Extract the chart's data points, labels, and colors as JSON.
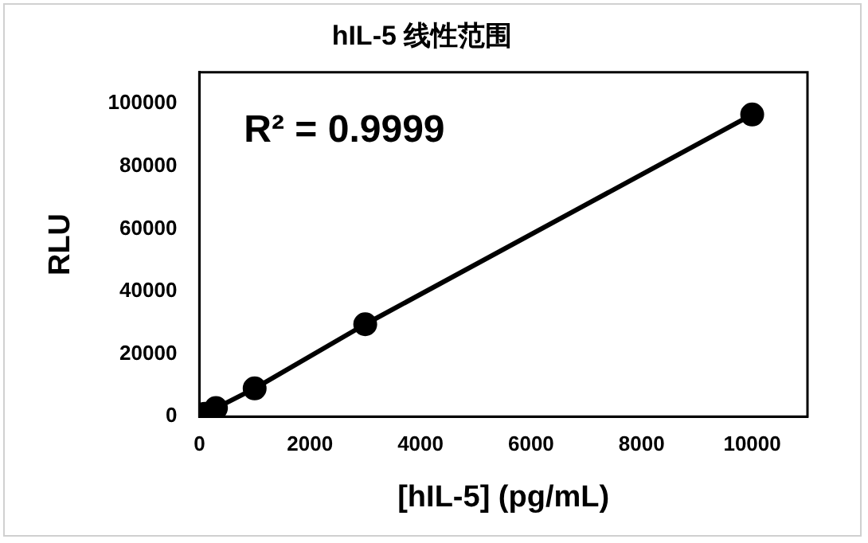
{
  "chart_data": {
    "type": "line",
    "title": "hIL-5 线性范围",
    "xlabel": "[hIL-5] (pg/mL)",
    "ylabel": "RLU",
    "x": [
      0,
      30,
      100,
      300,
      1000,
      3000,
      10000
    ],
    "series": [
      {
        "color": "#000000",
        "values": [
          0,
          300,
          900,
          2700,
          9000,
          29500,
          96500
        ]
      }
    ],
    "xlim": [
      0,
      11000
    ],
    "xticks": [
      0,
      2000,
      4000,
      6000,
      8000,
      10000
    ],
    "ylim": [
      0,
      110000
    ],
    "yticks": [
      0,
      20000,
      40000,
      60000,
      80000,
      100000
    ],
    "grid": false,
    "legend": false,
    "marker": "circle",
    "line_style": "solid",
    "annotations": [
      "R² = 0.9999"
    ]
  }
}
